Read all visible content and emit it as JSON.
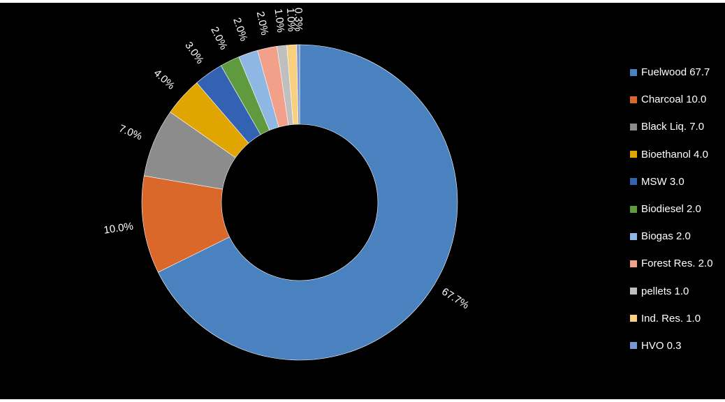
{
  "chart_data": {
    "type": "pie",
    "donut": true,
    "categories": [
      "Fuelwood",
      "Charcoal",
      "Black Liq.",
      "Bioethanol",
      "MSW",
      "Biodiesel",
      "Biogas",
      "Forest Res.",
      "pellets",
      "Ind. Res.",
      "HVO"
    ],
    "values": [
      67.7,
      10.0,
      7.0,
      4.0,
      3.0,
      2.0,
      2.0,
      2.0,
      1.0,
      1.0,
      0.3
    ],
    "data_labels": [
      "67.7%",
      "10.0%",
      "7.0%",
      "4.0%",
      "3.0%",
      "2.0%",
      "2.0%",
      "2.0%",
      "1.0%",
      "1.0%",
      "0.3%"
    ],
    "legend_labels": [
      "Fuelwood 67.7",
      "Charcoal 10.0",
      "Black Liq. 7.0",
      "Bioethanol 4.0",
      "MSW 3.0",
      "Biodiesel 2.0",
      "Biogas 2.0",
      "Forest Res. 2.0",
      "pellets 1.0",
      "Ind. Res. 1.0",
      "HVO 0.3"
    ],
    "colors": [
      "#4a82c0",
      "#d9682a",
      "#8c8c8c",
      "#e0a500",
      "#3462b2",
      "#5f9b3e",
      "#8fb7e3",
      "#f2a08a",
      "#bfbfbf",
      "#f8d080",
      "#7b96cf"
    ],
    "legend_position": "right",
    "background": "#000000"
  }
}
